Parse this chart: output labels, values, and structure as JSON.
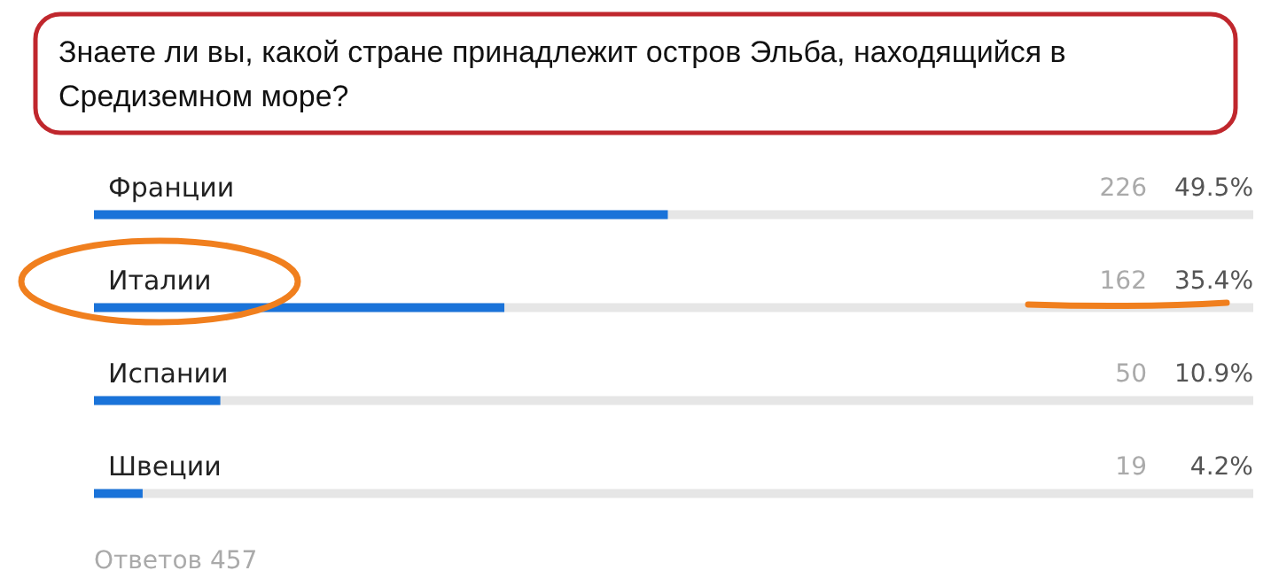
{
  "chart_data": {
    "type": "bar",
    "orientation": "horizontal",
    "title": "Знаете ли вы, какой стране принадлежит остров Эльба, находящийся в Средиземном море?",
    "categories": [
      "Франции",
      "Италии",
      "Испании",
      "Швеции"
    ],
    "values": [
      49.5,
      35.4,
      10.9,
      4.2
    ],
    "value_labels": [
      "49.5%",
      "35.4%",
      "10.9%",
      "4.2%"
    ],
    "color": "#1a73d9",
    "xlim": [
      0,
      100
    ],
    "tick_labels": "y",
    "annotations": [
      "226",
      "162",
      "50",
      "19",
      "Ответов 457"
    ]
  }
}
